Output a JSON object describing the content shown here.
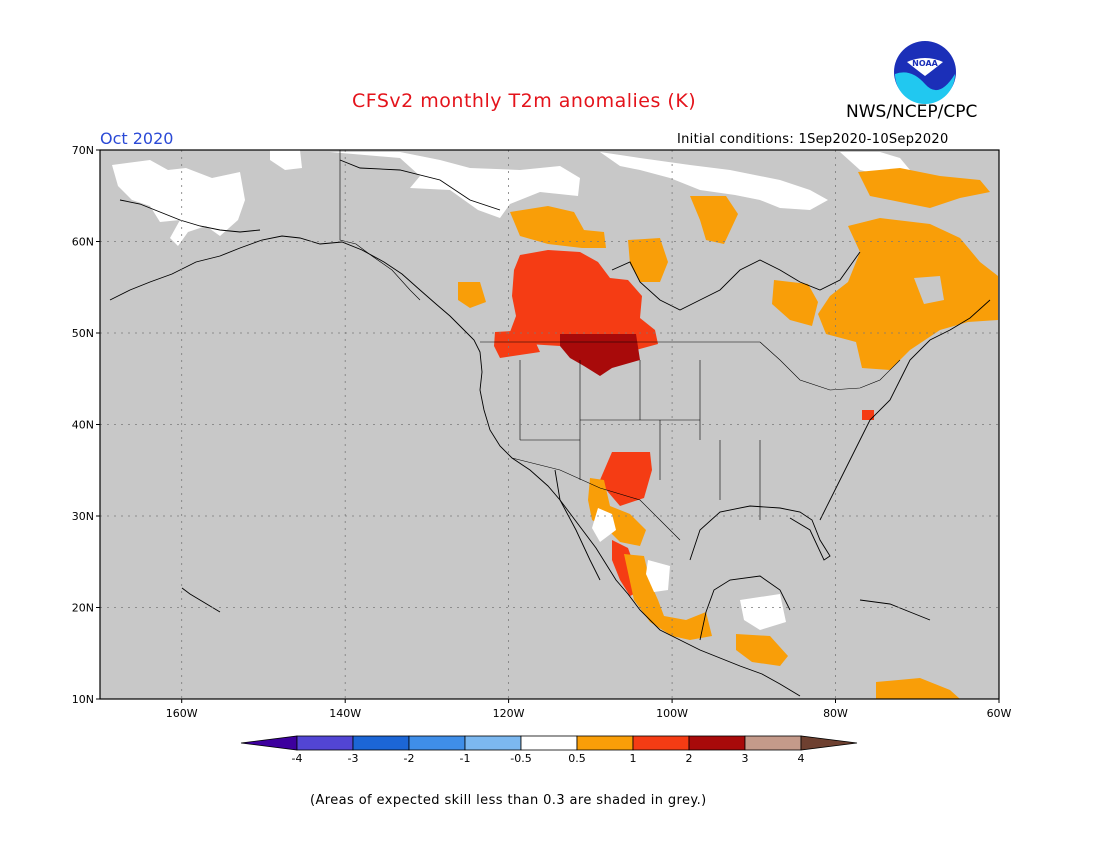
{
  "header": {
    "title": "CFSv2 monthly T2m anomalies (K)",
    "org": "NWS/NCEP/CPC",
    "month": "Oct 2020",
    "initial_conditions": "Initial conditions: 1Sep2020-10Sep2020",
    "logo_text": "NOAA"
  },
  "map": {
    "lat_labels": [
      "70N",
      "60N",
      "50N",
      "40N",
      "30N",
      "20N",
      "10N"
    ],
    "lon_labels": [
      "160W",
      "140W",
      "120W",
      "100W",
      "80W",
      "60W"
    ],
    "lat_range": [
      10,
      70
    ],
    "lon_range": [
      -170,
      -60
    ],
    "background": "#c8c8c8",
    "anomaly_regions": [
      {
        "name": "canadian-prairies",
        "category": "1 to 2",
        "color": "#f53c14"
      },
      {
        "name": "montana-alberta",
        "category": "2 to 3",
        "color": "#a80a0a"
      },
      {
        "name": "southwest-us",
        "category": "1 to 2",
        "color": "#f53c14"
      },
      {
        "name": "eastern-canada",
        "category": "0.5 to 1",
        "color": "#f99e08"
      },
      {
        "name": "mexico",
        "category": "0.5 to 1",
        "color": "#f99e08"
      },
      {
        "name": "alaska-arctic",
        "category": "-0.5 to 0.5",
        "color": "#ffffff"
      }
    ]
  },
  "colorbar": {
    "labels": [
      "-4",
      "-3",
      "-2",
      "-1",
      "-0.5",
      "0.5",
      "1",
      "2",
      "3",
      "4"
    ],
    "colors": [
      "#3d009e",
      "#5245d4",
      "#1c66d6",
      "#3f8ee8",
      "#7cb8f0",
      "#ffffff",
      "#f99e08",
      "#f53c14",
      "#a80a0a",
      "#c49a8a",
      "#6e4030"
    ]
  },
  "footnote": "(Areas of expected skill less than 0.3 are shaded in grey.)"
}
